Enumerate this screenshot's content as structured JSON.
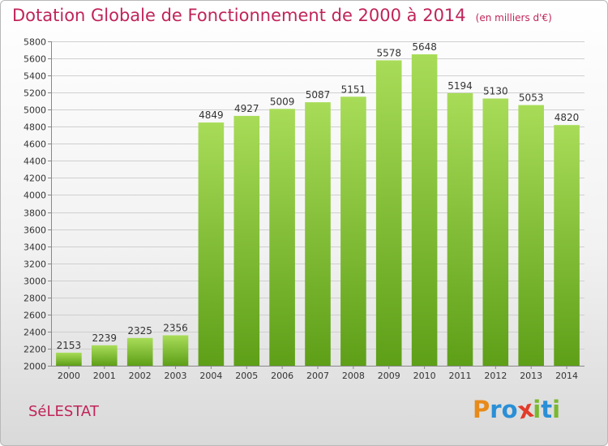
{
  "chart_data": {
    "type": "bar",
    "title": "Dotation Globale de Fonctionnement de 2000 à 2014",
    "subtitle": "(en milliers d'€)",
    "categories": [
      "2000",
      "2001",
      "2002",
      "2003",
      "2004",
      "2005",
      "2006",
      "2007",
      "2008",
      "2009",
      "2010",
      "2011",
      "2012",
      "2013",
      "2014"
    ],
    "values": [
      2153,
      2239,
      2325,
      2356,
      4849,
      4927,
      5009,
      5087,
      5151,
      5578,
      5648,
      5194,
      5130,
      5053,
      4820
    ],
    "ylim": [
      2000,
      5800
    ],
    "ytick_step": 200,
    "grid": true,
    "bar_color": "#7ab82e"
  },
  "footer": {
    "commune": "SéLESTAT",
    "logo_letters": [
      "P",
      "r",
      "o",
      "x",
      "i",
      "t",
      "i"
    ],
    "logo_colors": [
      "#e88a1a",
      "#2a8fd6",
      "#2a8fd6",
      "#e23b2a",
      "#7ab82e",
      "#2a8fd6",
      "#7ab82e"
    ]
  }
}
